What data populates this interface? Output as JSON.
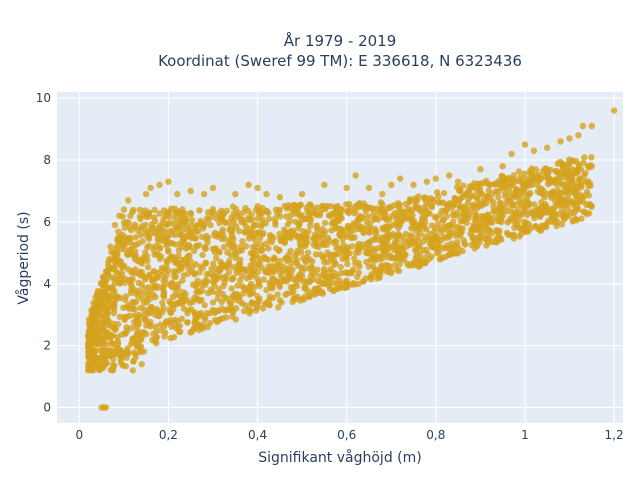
{
  "chart_data": {
    "type": "scatter",
    "title_line1": "År 1979 - 2019",
    "title_line2": "Koordinat (Sweref 99 TM): E 336618, N 6323436",
    "xlabel": "Signifikant våghöjd (m)",
    "ylabel": "Vågperiod (s)",
    "xlim": [
      -0.05,
      1.22
    ],
    "ylim": [
      -0.5,
      10.2
    ],
    "x_ticks": [
      0,
      0.2,
      0.4,
      0.6,
      0.8,
      1,
      1.2
    ],
    "x_tick_labels": [
      "0",
      "0,2",
      "0,4",
      "0,6",
      "0,8",
      "1",
      "1,2"
    ],
    "y_ticks": [
      0,
      2,
      4,
      6,
      8,
      10
    ],
    "y_tick_labels": [
      "0",
      "2",
      "4",
      "6",
      "8",
      "10"
    ],
    "grid": true,
    "legend": "none",
    "marker_color": "#d4a21e",
    "plot_background": "#e5ecf6",
    "series": [
      {
        "points": [
          [
            0.05,
            0.0
          ],
          [
            0.055,
            0.0
          ],
          [
            0.06,
            0.0
          ],
          [
            0.02,
            1.2
          ],
          [
            0.02,
            1.8
          ],
          [
            0.03,
            1.4
          ],
          [
            0.04,
            2.2
          ],
          [
            0.05,
            3.2
          ],
          [
            0.06,
            4.4
          ],
          [
            0.07,
            5.2
          ],
          [
            0.08,
            5.9
          ],
          [
            0.09,
            6.2
          ],
          [
            0.1,
            6.4
          ],
          [
            0.11,
            6.7
          ],
          [
            0.12,
            1.2
          ],
          [
            0.13,
            2.0
          ],
          [
            0.14,
            1.4
          ],
          [
            0.15,
            6.9
          ],
          [
            0.16,
            7.1
          ],
          [
            0.18,
            7.2
          ],
          [
            0.2,
            7.3
          ],
          [
            0.22,
            6.9
          ],
          [
            0.25,
            7.0
          ],
          [
            0.28,
            6.9
          ],
          [
            0.3,
            3.4
          ],
          [
            0.32,
            3.2
          ],
          [
            0.3,
            7.1
          ],
          [
            0.35,
            6.9
          ],
          [
            0.38,
            7.2
          ],
          [
            0.4,
            7.1
          ],
          [
            0.42,
            6.9
          ],
          [
            0.45,
            6.8
          ],
          [
            0.5,
            6.9
          ],
          [
            0.55,
            7.2
          ],
          [
            0.6,
            7.1
          ],
          [
            0.62,
            7.5
          ],
          [
            0.65,
            7.1
          ],
          [
            0.68,
            6.9
          ],
          [
            0.7,
            7.2
          ],
          [
            0.72,
            7.4
          ],
          [
            0.75,
            7.2
          ],
          [
            0.78,
            7.3
          ],
          [
            0.8,
            7.4
          ],
          [
            0.83,
            7.5
          ],
          [
            0.85,
            7.3
          ],
          [
            0.88,
            7.1
          ],
          [
            0.9,
            7.7
          ],
          [
            0.92,
            7.2
          ],
          [
            0.95,
            7.8
          ],
          [
            0.97,
            8.2
          ],
          [
            1.0,
            8.5
          ],
          [
            1.02,
            8.3
          ],
          [
            1.05,
            8.4
          ],
          [
            1.08,
            8.6
          ],
          [
            1.1,
            8.7
          ],
          [
            1.12,
            8.8
          ],
          [
            1.13,
            9.1
          ],
          [
            1.15,
            9.1
          ],
          [
            1.2,
            9.6
          ],
          [
            0.45,
            3.9
          ],
          [
            0.5,
            4.4
          ],
          [
            0.55,
            4.7
          ],
          [
            0.6,
            4.8
          ],
          [
            0.65,
            5.0
          ],
          [
            0.7,
            5.2
          ],
          [
            0.75,
            5.4
          ],
          [
            0.8,
            5.5
          ],
          [
            0.85,
            5.6
          ],
          [
            0.9,
            5.9
          ],
          [
            0.95,
            6.2
          ],
          [
            1.0,
            6.5
          ],
          [
            1.05,
            6.9
          ],
          [
            1.1,
            7.4
          ],
          [
            1.15,
            7.8
          ]
        ]
      }
    ]
  }
}
